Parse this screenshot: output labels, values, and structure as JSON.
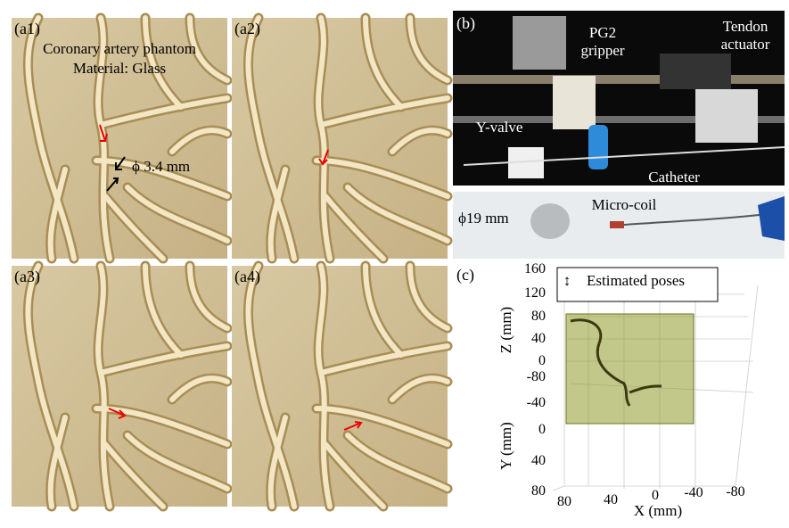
{
  "panel_a1": {
    "label": "(a1)",
    "title": "Coronary artery phantom",
    "material": "Material: Glass",
    "diameter": "ϕ 3.4 mm"
  },
  "panel_a2": {
    "label": "(a2)"
  },
  "panel_a3": {
    "label": "(a3)"
  },
  "panel_a4": {
    "label": "(a4)"
  },
  "panel_b": {
    "label": "(b)",
    "gripper": [
      "PG2",
      "gripper"
    ],
    "actuator": [
      "Tendon",
      "actuator"
    ],
    "valve": "Y-valve",
    "catheter": "Catheter",
    "coin": "ϕ19 mm",
    "coil": "Micro-coil"
  },
  "panel_c": {
    "label": "(c)",
    "legend": "Estimated poses",
    "z_label": "Z (mm)",
    "z_ticks": [
      "160",
      "120",
      "80",
      "40",
      "0"
    ],
    "y_label": "Y (mm)",
    "y_ticks": [
      "-80",
      "-40",
      "0",
      "40",
      "80"
    ],
    "x_label": "X (mm)",
    "x_ticks": [
      "80",
      "40",
      "0",
      "-40",
      "-80"
    ]
  }
}
